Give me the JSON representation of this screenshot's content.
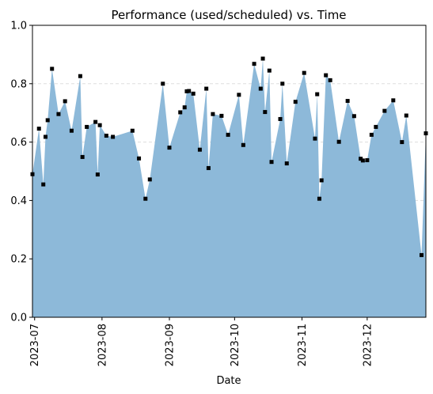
{
  "chart_data": {
    "type": "area",
    "title": "Performance (used/scheduled) vs. Time",
    "xlabel": "Date",
    "ylabel": "",
    "ylim": [
      0.0,
      1.0
    ],
    "xlim": [
      "2023-06-30",
      "2023-12-28"
    ],
    "yticks": [
      "0.0",
      "0.2",
      "0.4",
      "0.6",
      "0.8",
      "1.0"
    ],
    "xticks": [
      {
        "date": "2023-07-01",
        "label": "2023-07"
      },
      {
        "date": "2023-08-01",
        "label": "2023-08"
      },
      {
        "date": "2023-09-01",
        "label": "2023-09"
      },
      {
        "date": "2023-10-01",
        "label": "2023-10"
      },
      {
        "date": "2023-11-01",
        "label": "2023-11"
      },
      {
        "date": "2023-12-01",
        "label": "2023-12"
      }
    ],
    "grid": "horizontal dashed",
    "colors": {
      "area": "#8db9d9",
      "marker": "#000000",
      "grid": "#dddddd"
    },
    "series": [
      {
        "x": [
          "2023-06-30",
          "2023-07-03",
          "2023-07-05",
          "2023-07-06",
          "2023-07-07",
          "2023-07-09",
          "2023-07-12",
          "2023-07-15",
          "2023-07-18",
          "2023-07-22",
          "2023-07-23",
          "2023-07-25",
          "2023-07-29",
          "2023-07-30",
          "2023-07-31",
          "2023-08-03",
          "2023-08-06",
          "2023-08-15",
          "2023-08-18",
          "2023-08-21",
          "2023-08-23",
          "2023-08-29",
          "2023-09-01",
          "2023-09-06",
          "2023-09-08",
          "2023-09-09",
          "2023-09-10",
          "2023-09-12",
          "2023-09-15",
          "2023-09-18",
          "2023-09-19",
          "2023-09-21",
          "2023-09-25",
          "2023-09-28",
          "2023-10-03",
          "2023-10-05",
          "2023-10-10",
          "2023-10-13",
          "2023-10-14",
          "2023-10-15",
          "2023-10-17",
          "2023-10-18",
          "2023-10-22",
          "2023-10-23",
          "2023-10-25",
          "2023-10-29",
          "2023-11-02",
          "2023-11-07",
          "2023-11-08",
          "2023-11-09",
          "2023-11-10",
          "2023-11-12",
          "2023-11-14",
          "2023-11-18",
          "2023-11-22",
          "2023-11-25",
          "2023-11-28",
          "2023-11-29",
          "2023-12-01",
          "2023-12-03",
          "2023-12-05",
          "2023-12-09",
          "2023-12-13",
          "2023-12-17",
          "2023-12-19",
          "2023-12-26",
          "2023-12-28"
        ],
        "y": [
          0.49,
          0.646,
          0.455,
          0.618,
          0.675,
          0.851,
          0.696,
          0.74,
          0.639,
          0.826,
          0.549,
          0.652,
          0.669,
          0.489,
          0.658,
          0.622,
          0.618,
          0.639,
          0.544,
          0.406,
          0.472,
          0.8,
          0.581,
          0.702,
          0.719,
          0.774,
          0.775,
          0.766,
          0.574,
          0.783,
          0.511,
          0.696,
          0.69,
          0.625,
          0.762,
          0.59,
          0.868,
          0.783,
          0.886,
          0.703,
          0.845,
          0.532,
          0.679,
          0.8,
          0.527,
          0.738,
          0.837,
          0.612,
          0.764,
          0.406,
          0.469,
          0.829,
          0.812,
          0.601,
          0.741,
          0.689,
          0.543,
          0.537,
          0.538,
          0.625,
          0.652,
          0.707,
          0.743,
          0.6,
          0.691,
          0.213,
          0.63
        ]
      }
    ]
  }
}
